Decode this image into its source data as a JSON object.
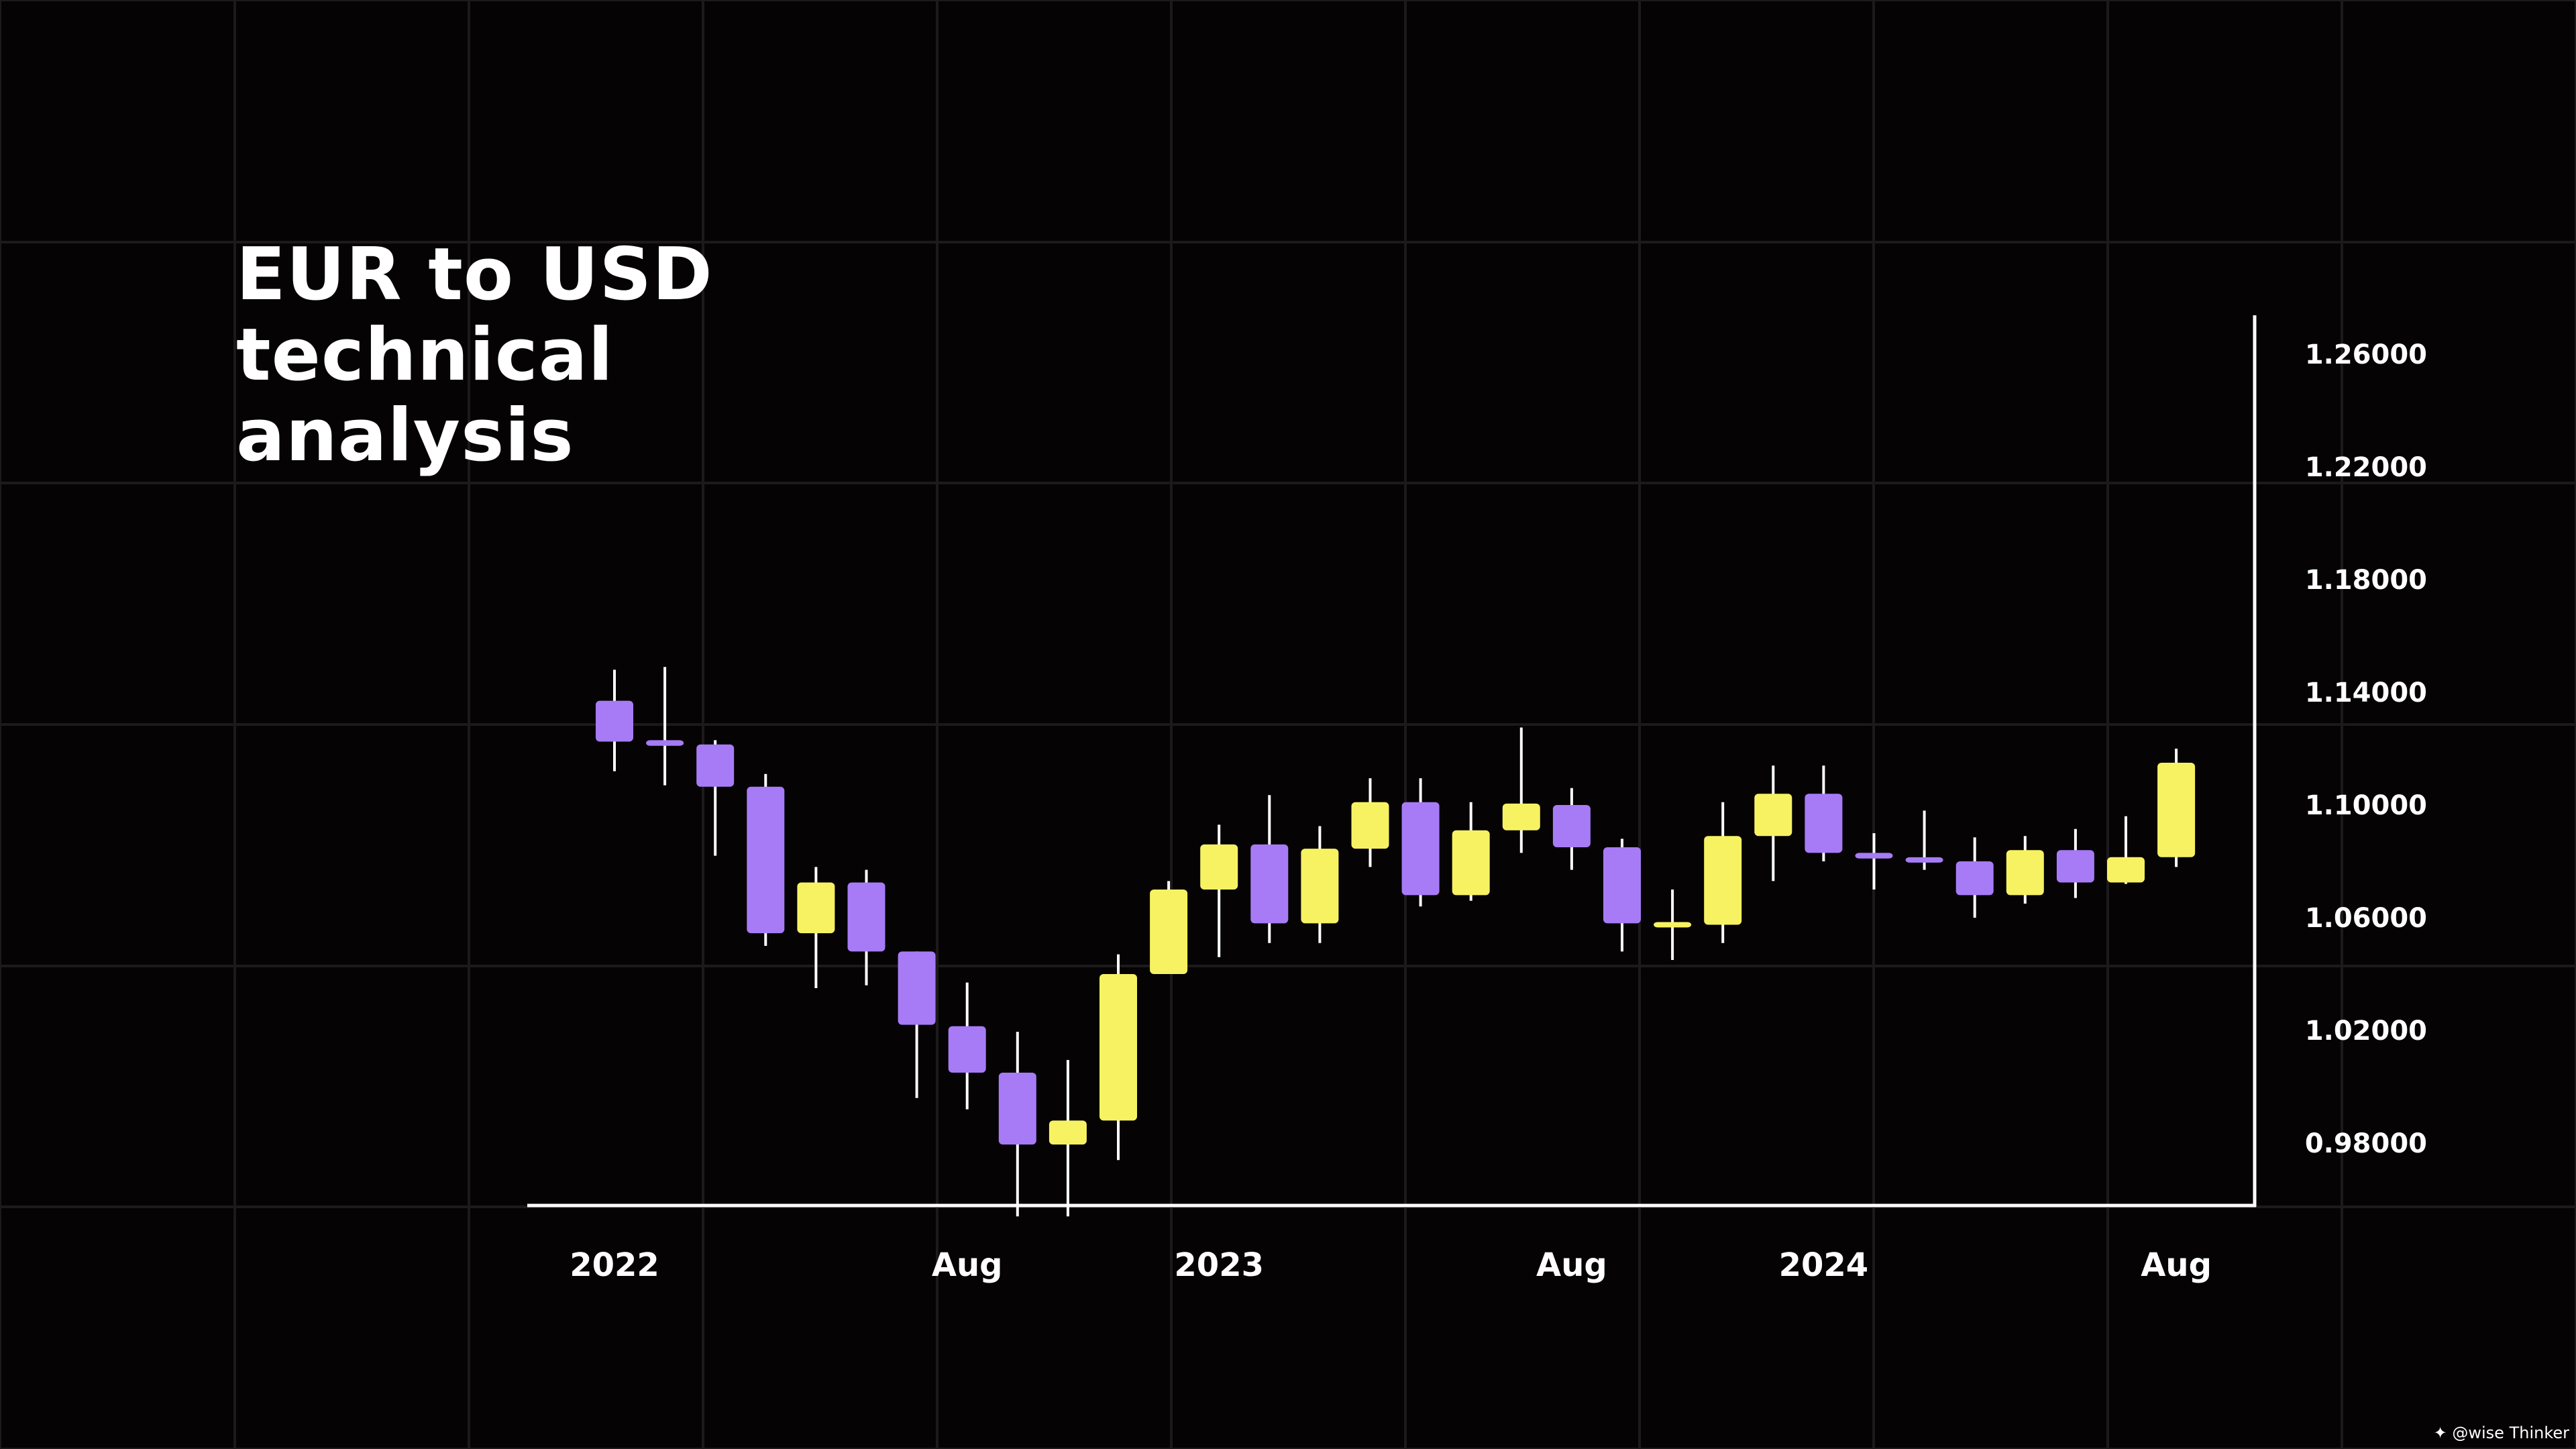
{
  "title_lines": [
    "EUR to USD",
    "technical",
    "analysis"
  ],
  "watermark": "@wise Thinker",
  "colors": {
    "background": "#050304",
    "grid": "#1c1a1b",
    "axis": "#ffffff",
    "text": "#ffffff",
    "bullish": "#f7f262",
    "bearish": "#a77bf6"
  },
  "chart_data": {
    "type": "candlestick",
    "title": "EUR to USD technical analysis",
    "xlabel": "",
    "ylabel": "",
    "ylim": [
      0.955,
      1.27
    ],
    "yticks": [
      "1.26000",
      "1.22000",
      "1.18000",
      "1.14000",
      "1.10000",
      "1.06000",
      "1.02000",
      "0.98000"
    ],
    "ytick_values": [
      1.26,
      1.22,
      1.18,
      1.14,
      1.1,
      1.06,
      1.02,
      0.98
    ],
    "xticks": [
      "2022",
      "Aug",
      "2023",
      "Aug",
      "2024",
      "Aug"
    ],
    "xtick_values": [
      "2022-01",
      "2022-08",
      "2023-01",
      "2023-08",
      "2024-01",
      "2024-08"
    ],
    "grid": true,
    "series": [
      {
        "candles": [
          {
            "date": "2022-01",
            "open": 1.137,
            "high": 1.148,
            "low": 1.112,
            "close": 1.1225
          },
          {
            "date": "2022-02",
            "open": 1.123,
            "high": 1.149,
            "low": 1.107,
            "close": 1.121
          },
          {
            "date": "2022-03",
            "open": 1.1215,
            "high": 1.123,
            "low": 1.082,
            "close": 1.1065
          },
          {
            "date": "2022-04",
            "open": 1.1065,
            "high": 1.111,
            "low": 1.05,
            "close": 1.0545
          },
          {
            "date": "2022-05",
            "open": 1.0545,
            "high": 1.078,
            "low": 1.035,
            "close": 1.0725
          },
          {
            "date": "2022-06",
            "open": 1.0725,
            "high": 1.077,
            "low": 1.036,
            "close": 1.048
          },
          {
            "date": "2022-07",
            "open": 1.048,
            "high": 1.048,
            "low": 0.996,
            "close": 1.022
          },
          {
            "date": "2022-08",
            "open": 1.0215,
            "high": 1.037,
            "low": 0.992,
            "close": 1.005
          },
          {
            "date": "2022-09",
            "open": 1.005,
            "high": 1.0195,
            "low": 0.954,
            "close": 0.9795
          },
          {
            "date": "2022-10",
            "open": 0.9795,
            "high": 1.0095,
            "low": 0.954,
            "close": 0.988
          },
          {
            "date": "2022-11",
            "open": 0.988,
            "high": 1.047,
            "low": 0.974,
            "close": 1.04
          },
          {
            "date": "2022-12",
            "open": 1.04,
            "high": 1.073,
            "low": 1.04,
            "close": 1.07
          },
          {
            "date": "2023-01",
            "open": 1.07,
            "high": 1.093,
            "low": 1.046,
            "close": 1.086
          },
          {
            "date": "2023-02",
            "open": 1.086,
            "high": 1.1035,
            "low": 1.051,
            "close": 1.058
          },
          {
            "date": "2023-03",
            "open": 1.058,
            "high": 1.0925,
            "low": 1.051,
            "close": 1.0845
          },
          {
            "date": "2023-04",
            "open": 1.0845,
            "high": 1.1095,
            "low": 1.078,
            "close": 1.101
          },
          {
            "date": "2023-05",
            "open": 1.101,
            "high": 1.1095,
            "low": 1.064,
            "close": 1.068
          },
          {
            "date": "2023-06",
            "open": 1.068,
            "high": 1.101,
            "low": 1.066,
            "close": 1.091
          },
          {
            "date": "2023-07",
            "open": 1.091,
            "high": 1.1275,
            "low": 1.083,
            "close": 1.1005
          },
          {
            "date": "2023-08",
            "open": 1.1,
            "high": 1.106,
            "low": 1.077,
            "close": 1.085
          },
          {
            "date": "2023-09",
            "open": 1.085,
            "high": 1.088,
            "low": 1.048,
            "close": 1.058
          },
          {
            "date": "2023-10",
            "open": 1.0575,
            "high": 1.07,
            "low": 1.045,
            "close": 1.0575
          },
          {
            "date": "2023-11",
            "open": 1.0575,
            "high": 1.101,
            "low": 1.051,
            "close": 1.089
          },
          {
            "date": "2023-12",
            "open": 1.089,
            "high": 1.114,
            "low": 1.073,
            "close": 1.104
          },
          {
            "date": "2024-01",
            "open": 1.104,
            "high": 1.114,
            "low": 1.08,
            "close": 1.083
          },
          {
            "date": "2024-02",
            "open": 1.083,
            "high": 1.09,
            "low": 1.07,
            "close": 1.081
          },
          {
            "date": "2024-03",
            "open": 1.081,
            "high": 1.098,
            "low": 1.077,
            "close": 1.08
          },
          {
            "date": "2024-04",
            "open": 1.08,
            "high": 1.0885,
            "low": 1.06,
            "close": 1.068
          },
          {
            "date": "2024-05",
            "open": 1.068,
            "high": 1.089,
            "low": 1.065,
            "close": 1.084
          },
          {
            "date": "2024-06",
            "open": 1.084,
            "high": 1.0915,
            "low": 1.067,
            "close": 1.0725
          },
          {
            "date": "2024-07",
            "open": 1.0725,
            "high": 1.096,
            "low": 1.072,
            "close": 1.0815
          },
          {
            "date": "2024-08",
            "open": 1.0815,
            "high": 1.12,
            "low": 1.078,
            "close": 1.115
          }
        ]
      }
    ]
  }
}
